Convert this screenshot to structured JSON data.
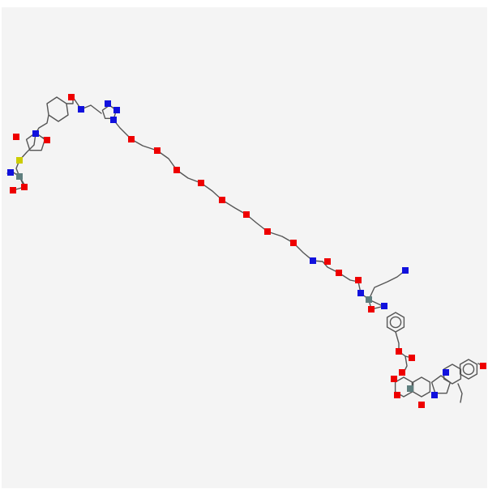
{
  "structure": {
    "colors": {
      "background": "#f4f4f4",
      "bond": "#555555",
      "oxygen": "#ee0000",
      "nitrogen": "#1111dd",
      "sulfur": "#cccc00",
      "carbon_stereo": "#5f7f7f"
    },
    "ring_labels": [
      "",
      ""
    ]
  }
}
